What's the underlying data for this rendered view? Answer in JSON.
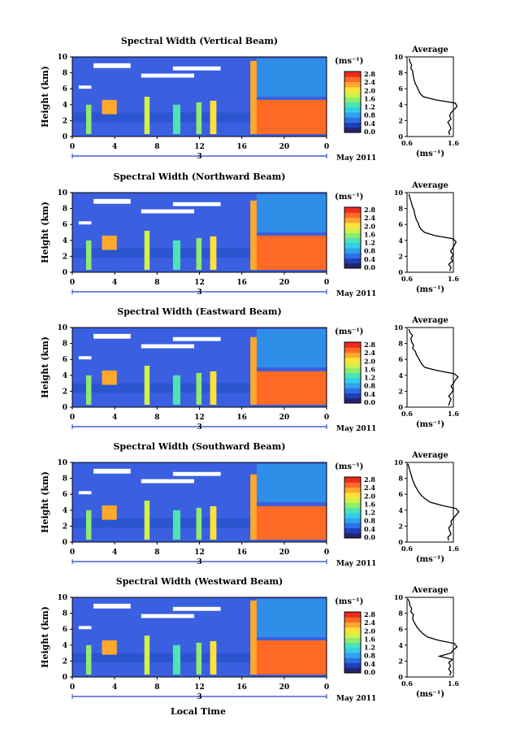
{
  "figure": {
    "xlabel": "Local Time",
    "ylabel": "Height (km)",
    "colorbar_unit": "(ms⁻¹)",
    "date_label": "May 2011",
    "day_marker": "3",
    "profile_title": "Average",
    "profile_xlabel": "(ms⁻¹)",
    "colormap": [
      "#24246b",
      "#1f3fb8",
      "#2f6fe6",
      "#2fa3ef",
      "#33cde8",
      "#4de3b2",
      "#8fec6e",
      "#d4f04a",
      "#ffe13a",
      "#ffa82e",
      "#ff6a24",
      "#ee2a1e"
    ],
    "panel_bg": "#3a5fe0"
  },
  "chart_data": [
    {
      "type": "heatmap",
      "title": "Spectral Width (Vertical Beam)",
      "xlabel": "Local Time",
      "ylabel": "Height (km)",
      "x_ticks": [
        "0",
        "4",
        "8",
        "12",
        "16",
        "20",
        "0"
      ],
      "y_ticks": [
        "0",
        "2",
        "4",
        "6",
        "8",
        "10"
      ],
      "xlim": [
        0,
        24
      ],
      "ylim": [
        0,
        10
      ],
      "colorbar": {
        "label": "(ms⁻¹)",
        "ticks": [
          "0.0",
          "0.4",
          "0.8",
          "1.2",
          "1.6",
          "2.0",
          "2.4",
          "2.8"
        ],
        "range": [
          0,
          2.8
        ]
      },
      "features": [
        {
          "x": [
            17.2,
            24
          ],
          "y": [
            0.3,
            4.6
          ],
          "value": 2.5
        },
        {
          "x": [
            16.8,
            17.4
          ],
          "y": [
            0.3,
            9.5
          ],
          "value": 2.2
        },
        {
          "x": [
            2.8,
            4.2
          ],
          "y": [
            2.8,
            4.6
          ],
          "value": 2.2
        },
        {
          "x": [
            6.8,
            7.3
          ],
          "y": [
            0.3,
            5.0
          ],
          "value": 1.8
        },
        {
          "x": [
            13.0,
            13.6
          ],
          "y": [
            0.3,
            4.5
          ],
          "value": 2.0
        },
        {
          "x": [
            11.7,
            12.2
          ],
          "y": [
            0.3,
            4.3
          ],
          "value": 1.6
        },
        {
          "x": [
            1.3,
            1.8
          ],
          "y": [
            0.3,
            4.0
          ],
          "value": 1.4
        },
        {
          "x": [
            9.5,
            10.2
          ],
          "y": [
            0.3,
            4.0
          ],
          "value": 1.2
        }
      ],
      "profile": {
        "title": "Average",
        "xlabel": "(ms⁻¹)",
        "x_ticks": [
          "0.6",
          "1.6"
        ],
        "y_ticks": [
          "0",
          "2",
          "4",
          "6",
          "8",
          "10"
        ],
        "xlim": [
          0.6,
          1.6
        ],
        "height_km": [
          0.2,
          0.6,
          1.0,
          1.4,
          1.8,
          2.2,
          2.6,
          3.0,
          3.4,
          3.8,
          4.2,
          4.6,
          5.0,
          5.4,
          5.8,
          6.2,
          6.6,
          7.0,
          7.4,
          7.8,
          8.2,
          8.6,
          9.0,
          9.4,
          9.8
        ],
        "width": [
          1.52,
          1.5,
          1.55,
          1.52,
          1.48,
          1.55,
          1.52,
          1.55,
          1.62,
          1.68,
          1.64,
          1.22,
          0.95,
          0.88,
          0.85,
          0.82,
          0.78,
          0.76,
          0.74,
          0.73,
          0.72,
          0.68,
          0.7,
          0.66,
          0.65
        ]
      }
    },
    {
      "type": "heatmap",
      "title": "Spectral Width (Northward Beam)",
      "xlabel": "Local Time",
      "ylabel": "Height (km)",
      "x_ticks": [
        "0",
        "4",
        "8",
        "12",
        "16",
        "20",
        "0"
      ],
      "y_ticks": [
        "0",
        "2",
        "4",
        "6",
        "8",
        "10"
      ],
      "xlim": [
        0,
        24
      ],
      "ylim": [
        0,
        10
      ],
      "colorbar": {
        "label": "(ms⁻¹)",
        "ticks": [
          "0.0",
          "0.4",
          "0.8",
          "1.2",
          "1.6",
          "2.0",
          "2.4",
          "2.8"
        ],
        "range": [
          0,
          2.8
        ]
      },
      "features": [
        {
          "x": [
            17.2,
            24
          ],
          "y": [
            0.3,
            4.6
          ],
          "value": 2.5
        },
        {
          "x": [
            16.8,
            17.4
          ],
          "y": [
            0.3,
            9.0
          ],
          "value": 2.2
        },
        {
          "x": [
            2.8,
            4.2
          ],
          "y": [
            2.8,
            4.6
          ],
          "value": 2.3
        },
        {
          "x": [
            6.8,
            7.3
          ],
          "y": [
            0.3,
            5.2
          ],
          "value": 1.8
        },
        {
          "x": [
            13.0,
            13.6
          ],
          "y": [
            0.3,
            4.5
          ],
          "value": 2.0
        },
        {
          "x": [
            11.7,
            12.2
          ],
          "y": [
            0.3,
            4.3
          ],
          "value": 1.6
        },
        {
          "x": [
            1.3,
            1.8
          ],
          "y": [
            0.3,
            4.0
          ],
          "value": 1.4
        },
        {
          "x": [
            9.5,
            10.2
          ],
          "y": [
            0.3,
            4.0
          ],
          "value": 1.2
        }
      ],
      "profile": {
        "title": "Average",
        "xlabel": "(ms⁻¹)",
        "x_ticks": [
          "0.6",
          "1.6"
        ],
        "y_ticks": [
          "0",
          "2",
          "4",
          "6",
          "8",
          "10"
        ],
        "xlim": [
          0.6,
          1.6
        ],
        "height_km": [
          0.2,
          0.6,
          1.0,
          1.4,
          1.8,
          2.2,
          2.6,
          3.0,
          3.4,
          3.8,
          4.2,
          4.6,
          5.0,
          5.4,
          5.8,
          6.2,
          6.6,
          7.0,
          7.4,
          7.8,
          8.2,
          8.6,
          9.0,
          9.4,
          9.8
        ],
        "width": [
          1.52,
          1.55,
          1.5,
          1.58,
          1.55,
          1.6,
          1.54,
          1.58,
          1.62,
          1.66,
          1.6,
          1.2,
          0.98,
          0.9,
          0.86,
          0.84,
          0.8,
          0.78,
          0.76,
          0.75,
          0.72,
          0.7,
          0.68,
          0.66,
          0.64
        ]
      }
    },
    {
      "type": "heatmap",
      "title": "Spectral Width (Eastward Beam)",
      "xlabel": "Local Time",
      "ylabel": "Height (km)",
      "x_ticks": [
        "0",
        "4",
        "8",
        "12",
        "16",
        "20",
        "0"
      ],
      "y_ticks": [
        "0",
        "2",
        "4",
        "6",
        "8",
        "10"
      ],
      "xlim": [
        0,
        24
      ],
      "ylim": [
        0,
        10
      ],
      "colorbar": {
        "label": "(ms⁻¹)",
        "ticks": [
          "0.0",
          "0.4",
          "0.8",
          "1.2",
          "1.6",
          "2.0",
          "2.4",
          "2.8"
        ],
        "range": [
          0,
          2.8
        ]
      },
      "features": [
        {
          "x": [
            17.2,
            24
          ],
          "y": [
            0.3,
            4.5
          ],
          "value": 2.5
        },
        {
          "x": [
            16.8,
            17.4
          ],
          "y": [
            0.3,
            8.8
          ],
          "value": 2.2
        },
        {
          "x": [
            2.8,
            4.2
          ],
          "y": [
            2.8,
            4.6
          ],
          "value": 2.3
        },
        {
          "x": [
            6.8,
            7.3
          ],
          "y": [
            0.3,
            5.2
          ],
          "value": 1.8
        },
        {
          "x": [
            13.0,
            13.6
          ],
          "y": [
            0.3,
            4.5
          ],
          "value": 2.0
        },
        {
          "x": [
            11.7,
            12.2
          ],
          "y": [
            0.3,
            4.3
          ],
          "value": 1.6
        },
        {
          "x": [
            1.3,
            1.8
          ],
          "y": [
            0.3,
            4.0
          ],
          "value": 1.4
        },
        {
          "x": [
            9.5,
            10.2
          ],
          "y": [
            0.3,
            4.0
          ],
          "value": 1.2
        }
      ],
      "profile": {
        "title": "Average",
        "xlabel": "(ms⁻¹)",
        "x_ticks": [
          "0.6",
          "1.6"
        ],
        "y_ticks": [
          "0",
          "2",
          "4",
          "6",
          "8",
          "10"
        ],
        "xlim": [
          0.6,
          1.6
        ],
        "height_km": [
          0.2,
          0.6,
          1.0,
          1.4,
          1.8,
          2.2,
          2.6,
          3.0,
          3.4,
          3.8,
          4.2,
          4.6,
          5.0,
          5.4,
          5.8,
          6.2,
          6.6,
          7.0,
          7.4,
          7.8,
          8.2,
          8.6,
          9.0,
          9.4,
          9.8
        ],
        "width": [
          1.5,
          1.52,
          1.55,
          1.5,
          1.56,
          1.6,
          1.55,
          1.6,
          1.64,
          1.7,
          1.62,
          1.25,
          0.98,
          0.92,
          0.88,
          0.84,
          0.8,
          0.78,
          0.72,
          0.74,
          0.7,
          0.68,
          0.72,
          0.66,
          0.64
        ]
      }
    },
    {
      "type": "heatmap",
      "title": "Spectral Width (Southward Beam)",
      "xlabel": "Local Time",
      "ylabel": "Height (km)",
      "x_ticks": [
        "0",
        "4",
        "8",
        "12",
        "16",
        "20",
        "0"
      ],
      "y_ticks": [
        "0",
        "2",
        "4",
        "6",
        "8",
        "10"
      ],
      "xlim": [
        0,
        24
      ],
      "ylim": [
        0,
        10
      ],
      "colorbar": {
        "label": "(ms⁻¹)",
        "ticks": [
          "0.0",
          "0.4",
          "0.8",
          "1.2",
          "1.6",
          "2.0",
          "2.4",
          "2.8"
        ],
        "range": [
          0,
          2.8
        ]
      },
      "features": [
        {
          "x": [
            17.2,
            24
          ],
          "y": [
            0.3,
            4.5
          ],
          "value": 2.5
        },
        {
          "x": [
            16.8,
            17.4
          ],
          "y": [
            0.3,
            8.5
          ],
          "value": 2.2
        },
        {
          "x": [
            2.8,
            4.2
          ],
          "y": [
            2.8,
            4.6
          ],
          "value": 2.3
        },
        {
          "x": [
            6.8,
            7.3
          ],
          "y": [
            0.3,
            5.2
          ],
          "value": 1.8
        },
        {
          "x": [
            13.0,
            13.6
          ],
          "y": [
            0.3,
            4.5
          ],
          "value": 2.0
        },
        {
          "x": [
            11.7,
            12.2
          ],
          "y": [
            0.3,
            4.3
          ],
          "value": 1.6
        },
        {
          "x": [
            1.3,
            1.8
          ],
          "y": [
            0.3,
            4.0
          ],
          "value": 1.4
        },
        {
          "x": [
            9.5,
            10.2
          ],
          "y": [
            0.3,
            4.0
          ],
          "value": 1.2
        }
      ],
      "profile": {
        "title": "Average",
        "xlabel": "(ms⁻¹)",
        "x_ticks": [
          "0.6",
          "1.6"
        ],
        "y_ticks": [
          "0",
          "2",
          "4",
          "6",
          "8",
          "10"
        ],
        "xlim": [
          0.6,
          1.6
        ],
        "height_km": [
          0.2,
          0.6,
          1.0,
          1.4,
          1.8,
          2.2,
          2.6,
          3.0,
          3.4,
          3.8,
          4.2,
          4.6,
          5.0,
          5.4,
          5.8,
          6.2,
          6.6,
          7.0,
          7.4,
          7.8,
          8.2,
          8.6,
          9.0,
          9.4,
          9.8
        ],
        "width": [
          1.5,
          1.48,
          1.55,
          1.52,
          1.5,
          1.56,
          1.55,
          1.6,
          1.66,
          1.72,
          1.66,
          1.35,
          1.1,
          1.0,
          0.92,
          0.86,
          0.82,
          0.78,
          0.75,
          0.72,
          0.7,
          0.68,
          0.66,
          0.64,
          0.62
        ]
      }
    },
    {
      "type": "heatmap",
      "title": "Spectral Width (Westward Beam)",
      "xlabel": "Local Time",
      "ylabel": "Height (km)",
      "x_ticks": [
        "0",
        "4",
        "8",
        "12",
        "16",
        "20",
        "0"
      ],
      "y_ticks": [
        "0",
        "2",
        "4",
        "6",
        "8",
        "10"
      ],
      "xlim": [
        0,
        24
      ],
      "ylim": [
        0,
        10
      ],
      "colorbar": {
        "label": "(ms⁻¹)",
        "ticks": [
          "0.0",
          "0.4",
          "0.8",
          "1.2",
          "1.6",
          "2.0",
          "2.4",
          "2.8"
        ],
        "range": [
          0,
          2.8
        ]
      },
      "features": [
        {
          "x": [
            17.2,
            24
          ],
          "y": [
            0.3,
            4.6
          ],
          "value": 2.5
        },
        {
          "x": [
            16.8,
            17.4
          ],
          "y": [
            0.3,
            9.6
          ],
          "value": 2.2
        },
        {
          "x": [
            2.8,
            4.2
          ],
          "y": [
            2.8,
            4.6
          ],
          "value": 2.1
        },
        {
          "x": [
            6.8,
            7.3
          ],
          "y": [
            0.3,
            5.2
          ],
          "value": 1.8
        },
        {
          "x": [
            13.0,
            13.6
          ],
          "y": [
            0.3,
            4.5
          ],
          "value": 2.0
        },
        {
          "x": [
            11.7,
            12.2
          ],
          "y": [
            0.3,
            4.3
          ],
          "value": 1.6
        },
        {
          "x": [
            1.3,
            1.8
          ],
          "y": [
            0.3,
            4.0
          ],
          "value": 1.4
        },
        {
          "x": [
            9.5,
            10.2
          ],
          "y": [
            0.3,
            4.0
          ],
          "value": 1.2
        }
      ],
      "profile": {
        "title": "Average",
        "xlabel": "(ms⁻¹)",
        "x_ticks": [
          "0.6",
          "1.6"
        ],
        "y_ticks": [
          "0",
          "2",
          "4",
          "6",
          "8",
          "10"
        ],
        "xlim": [
          0.6,
          1.6
        ],
        "height_km": [
          0.2,
          0.6,
          1.0,
          1.4,
          1.8,
          2.2,
          2.6,
          3.0,
          3.4,
          3.8,
          4.2,
          4.6,
          5.0,
          5.4,
          5.8,
          6.2,
          6.6,
          7.0,
          7.4,
          7.8,
          8.2,
          8.6,
          9.0,
          9.4,
          9.8
        ],
        "width": [
          1.52,
          1.55,
          1.5,
          1.54,
          1.5,
          1.58,
          1.3,
          1.55,
          1.6,
          1.68,
          1.62,
          1.28,
          1.05,
          0.95,
          0.88,
          0.82,
          0.78,
          0.74,
          0.72,
          0.74,
          0.68,
          0.7,
          0.66,
          0.65,
          0.62
        ]
      }
    }
  ]
}
